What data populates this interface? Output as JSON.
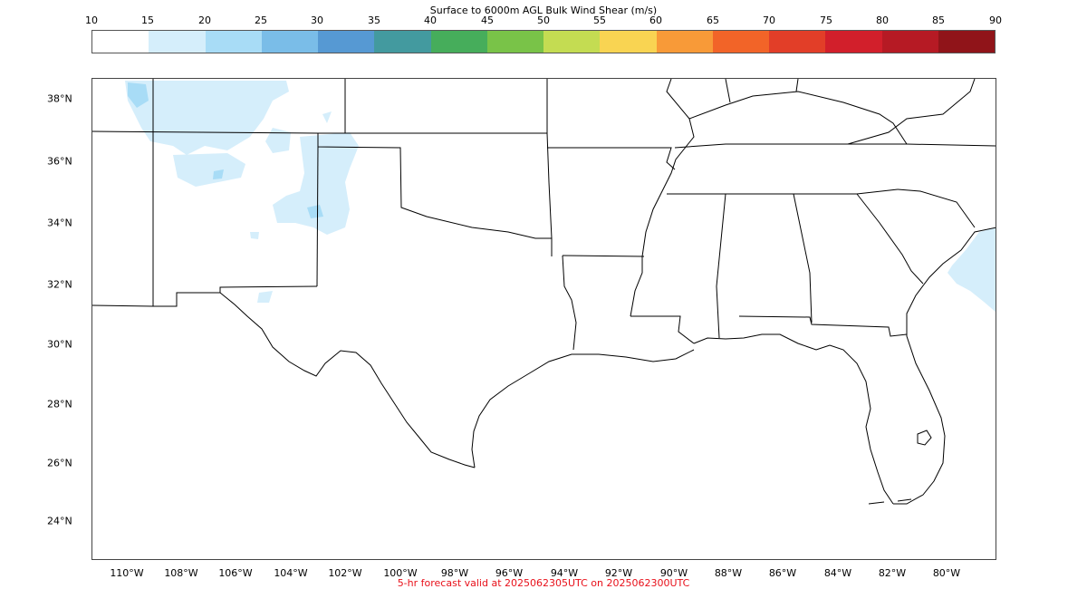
{
  "title": "Surface to 6000m AGL Bulk Wind Shear (m/s)",
  "footer": "5-hr forecast valid at 2025062305UTC on 2025062300UTC",
  "colorbar": {
    "ticks": [
      "10",
      "15",
      "20",
      "25",
      "30",
      "35",
      "40",
      "45",
      "50",
      "55",
      "60",
      "65",
      "70",
      "75",
      "80",
      "85",
      "90"
    ],
    "colors": [
      "#ffffff",
      "#d5eefb",
      "#a8dcf6",
      "#7abde8",
      "#5699d3",
      "#439a9f",
      "#46ad5b",
      "#79c348",
      "#c4dc52",
      "#f9d452",
      "#f89a38",
      "#f26428",
      "#e23e28",
      "#d21f2b",
      "#b61a24",
      "#901419"
    ]
  },
  "map": {
    "lat_labels": [
      "38°N",
      "36°N",
      "34°N",
      "32°N",
      "30°N",
      "28°N",
      "26°N",
      "24°N"
    ],
    "lon_labels": [
      "110°W",
      "108°W",
      "106°W",
      "104°W",
      "102°W",
      "100°W",
      "98°W",
      "96°W",
      "94°W",
      "92°W",
      "90°W",
      "88°W",
      "86°W",
      "84°W",
      "82°W",
      "80°W"
    ],
    "shear_color_light": "#d5eefb",
    "shear_color_mid": "#a8dcf6",
    "border_color": "#000000"
  }
}
